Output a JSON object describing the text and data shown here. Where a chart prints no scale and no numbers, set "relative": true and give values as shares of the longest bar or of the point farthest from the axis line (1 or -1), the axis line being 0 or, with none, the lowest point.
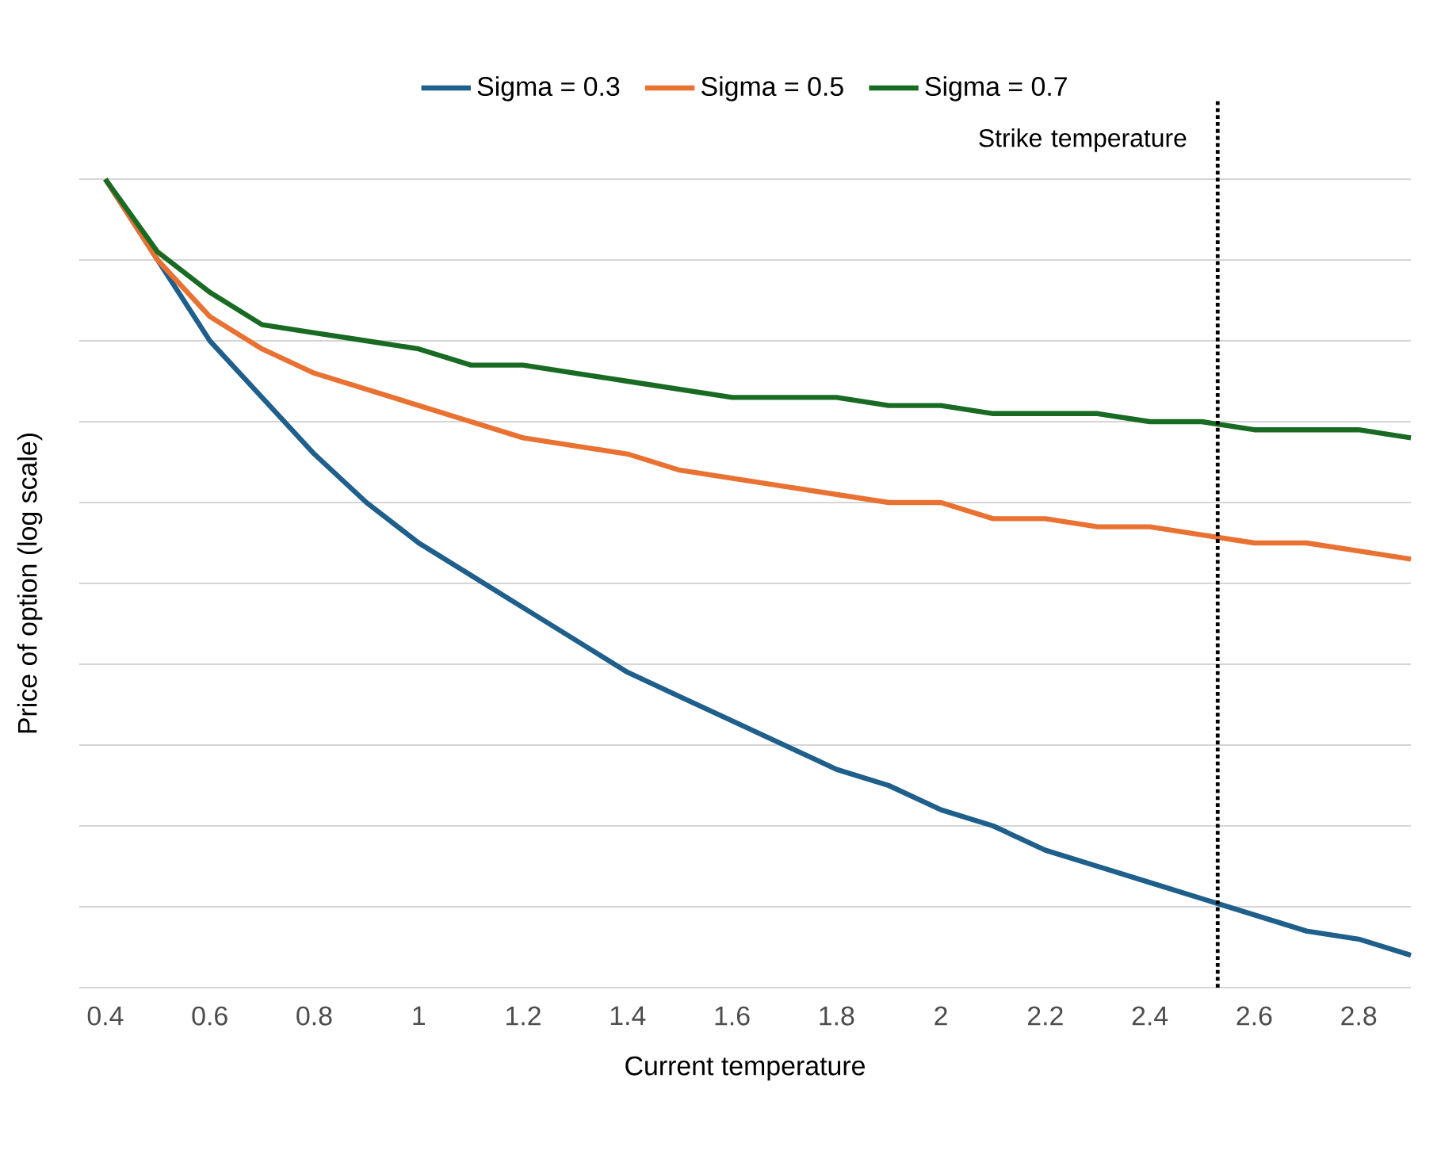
{
  "chart_data": {
    "type": "line",
    "xlabel": "Current temperature",
    "ylabel": "Price of option (log scale)",
    "relative": true,
    "grid": "y",
    "legend": "top",
    "line_style": "solid",
    "marker": "none",
    "xlim": [
      0.35,
      2.9
    ],
    "xticks": [
      0.4,
      0.6,
      0.8,
      1,
      1.2,
      1.4,
      1.6,
      1.8,
      2,
      2.2,
      2.4,
      2.6,
      2.8
    ],
    "x": [
      0.4,
      0.5,
      0.6,
      0.7,
      0.8,
      0.9,
      1.0,
      1.1,
      1.2,
      1.3,
      1.4,
      1.5,
      1.6,
      1.7,
      1.8,
      1.9,
      2.0,
      2.1,
      2.2,
      2.3,
      2.4,
      2.5,
      2.6,
      2.7,
      2.8,
      2.9
    ],
    "series": [
      {
        "name": "Sigma = 0.3",
        "color": "#1f5f8b",
        "values": [
          1.0,
          0.9,
          0.8,
          0.73,
          0.66,
          0.6,
          0.55,
          0.51,
          0.47,
          0.43,
          0.39,
          0.36,
          0.33,
          0.3,
          0.27,
          0.25,
          0.22,
          0.2,
          0.17,
          0.15,
          0.13,
          0.11,
          0.09,
          0.07,
          0.06,
          0.04
        ]
      },
      {
        "name": "Sigma = 0.5",
        "color": "#e97132",
        "values": [
          1.0,
          0.9,
          0.83,
          0.79,
          0.76,
          0.74,
          0.72,
          0.7,
          0.68,
          0.67,
          0.66,
          0.64,
          0.63,
          0.62,
          0.61,
          0.6,
          0.6,
          0.58,
          0.58,
          0.57,
          0.57,
          0.56,
          0.55,
          0.55,
          0.54,
          0.53
        ]
      },
      {
        "name": "Sigma = 0.7",
        "color": "#196b24",
        "values": [
          1.0,
          0.91,
          0.86,
          0.82,
          0.81,
          0.8,
          0.79,
          0.77,
          0.77,
          0.76,
          0.75,
          0.74,
          0.73,
          0.73,
          0.73,
          0.72,
          0.72,
          0.71,
          0.71,
          0.71,
          0.7,
          0.7,
          0.69,
          0.69,
          0.69,
          0.68
        ]
      }
    ],
    "ref_lines": [
      {
        "axis": "x",
        "value": 2.53,
        "label": "Strike temperature",
        "color": "#000000",
        "line_style": "dotted"
      }
    ]
  }
}
